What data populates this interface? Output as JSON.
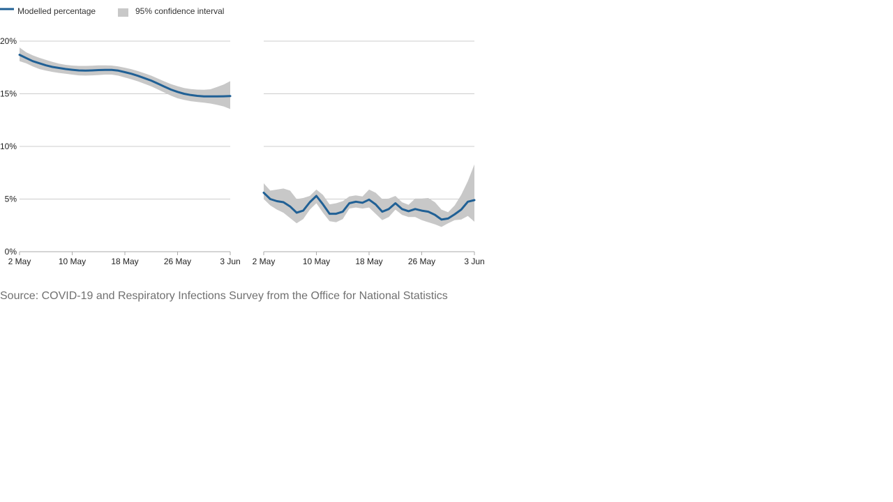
{
  "legend": {
    "line_label": "Modelled percentage",
    "band_label": "95% confidence interval"
  },
  "source": "Source: COVID-19 and Respiratory Infections Survey from the Office for National Statistics",
  "colors": {
    "line": "#206095",
    "band": "#c8c8c8",
    "grid": "#cccccc",
    "axis": "#aaaaaa"
  },
  "chart_data": [
    {
      "type": "line",
      "x": [
        "2 May",
        "3 May",
        "4 May",
        "5 May",
        "6 May",
        "7 May",
        "8 May",
        "9 May",
        "10 May",
        "11 May",
        "12 May",
        "13 May",
        "14 May",
        "15 May",
        "16 May",
        "17 May",
        "18 May",
        "19 May",
        "20 May",
        "21 May",
        "22 May",
        "23 May",
        "24 May",
        "25 May",
        "26 May",
        "27 May",
        "28 May",
        "29 May",
        "30 May",
        "31 May",
        "1 Jun",
        "2 Jun",
        "3 Jun"
      ],
      "xticks": [
        "2 May",
        "10 May",
        "18 May",
        "26 May",
        "3 Jun"
      ],
      "yticks": [
        "0%",
        "5%",
        "10%",
        "15%",
        "20%"
      ],
      "ylim": [
        0,
        20
      ],
      "grid": true,
      "legend_position": "top-left",
      "series": [
        {
          "name": "Modelled percentage",
          "values": [
            18.7,
            18.4,
            18.1,
            17.9,
            17.7,
            17.55,
            17.45,
            17.35,
            17.28,
            17.22,
            17.2,
            17.22,
            17.25,
            17.27,
            17.27,
            17.2,
            17.05,
            16.9,
            16.7,
            16.48,
            16.25,
            15.97,
            15.68,
            15.4,
            15.18,
            15.0,
            14.88,
            14.8,
            14.75,
            14.75,
            14.75,
            14.76,
            14.78
          ],
          "lower": [
            18.1,
            17.9,
            17.6,
            17.35,
            17.2,
            17.08,
            16.98,
            16.9,
            16.82,
            16.75,
            16.73,
            16.75,
            16.78,
            16.82,
            16.82,
            16.72,
            16.55,
            16.37,
            16.17,
            15.95,
            15.7,
            15.42,
            15.12,
            14.82,
            14.57,
            14.42,
            14.3,
            14.22,
            14.15,
            14.07,
            13.95,
            13.8,
            13.55
          ],
          "upper": [
            19.4,
            18.95,
            18.65,
            18.42,
            18.22,
            18.03,
            17.87,
            17.75,
            17.68,
            17.65,
            17.65,
            17.67,
            17.7,
            17.7,
            17.68,
            17.6,
            17.48,
            17.33,
            17.15,
            16.95,
            16.72,
            16.45,
            16.18,
            15.92,
            15.72,
            15.55,
            15.45,
            15.4,
            15.38,
            15.43,
            15.65,
            15.88,
            16.2
          ]
        }
      ]
    },
    {
      "type": "line",
      "x": [
        "2 May",
        "3 May",
        "4 May",
        "5 May",
        "6 May",
        "7 May",
        "8 May",
        "9 May",
        "10 May",
        "11 May",
        "12 May",
        "13 May",
        "14 May",
        "15 May",
        "16 May",
        "17 May",
        "18 May",
        "19 May",
        "20 May",
        "21 May",
        "22 May",
        "23 May",
        "24 May",
        "25 May",
        "26 May",
        "27 May",
        "28 May",
        "29 May",
        "30 May",
        "31 May",
        "1 Jun",
        "2 Jun",
        "3 Jun"
      ],
      "xticks": [
        "2 May",
        "10 May",
        "18 May",
        "26 May",
        "3 Jun"
      ],
      "ylim": [
        0,
        20
      ],
      "grid": true,
      "series": [
        {
          "name": "Modelled percentage",
          "values": [
            5.6,
            5.0,
            4.8,
            4.7,
            4.3,
            3.7,
            3.9,
            4.7,
            5.3,
            4.5,
            3.6,
            3.6,
            3.8,
            4.6,
            4.75,
            4.65,
            4.95,
            4.5,
            3.8,
            4.05,
            4.6,
            4.05,
            3.85,
            4.05,
            3.9,
            3.8,
            3.5,
            3.05,
            3.15,
            3.55,
            4.0,
            4.75,
            4.9
          ],
          "lower": [
            5.0,
            4.4,
            4.0,
            3.7,
            3.2,
            2.7,
            3.1,
            4.0,
            4.6,
            3.7,
            2.9,
            2.8,
            3.1,
            4.1,
            4.2,
            4.1,
            4.2,
            3.6,
            3.0,
            3.3,
            4.0,
            3.5,
            3.3,
            3.3,
            3.0,
            2.8,
            2.6,
            2.35,
            2.7,
            3.0,
            3.05,
            3.4,
            2.85
          ],
          "upper": [
            6.5,
            5.8,
            5.9,
            6.0,
            5.8,
            5.0,
            5.1,
            5.3,
            5.9,
            5.4,
            4.5,
            4.6,
            4.8,
            5.25,
            5.35,
            5.25,
            5.9,
            5.6,
            5.0,
            5.05,
            5.3,
            4.7,
            4.45,
            5.05,
            5.05,
            5.1,
            4.7,
            4.0,
            3.75,
            4.4,
            5.4,
            6.7,
            8.3
          ]
        }
      ]
    }
  ]
}
